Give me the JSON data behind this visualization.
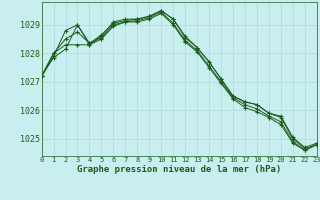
{
  "title": "Graphe pression niveau de la mer (hPa)",
  "background_color": "#c8eef0",
  "grid_color": "#b0d8dc",
  "line_color": "#1a5e1a",
  "xlim": [
    0,
    23
  ],
  "ylim": [
    1024.4,
    1029.8
  ],
  "yticks": [
    1025,
    1026,
    1027,
    1028,
    1029
  ],
  "xtick_labels": [
    "0",
    "1",
    "2",
    "3",
    "4",
    "5",
    "6",
    "7",
    "8",
    "9",
    "10",
    "11",
    "12",
    "13",
    "14",
    "15",
    "16",
    "17",
    "18",
    "19",
    "20",
    "21",
    "22",
    "23"
  ],
  "series": [
    [
      1027.2,
      1027.9,
      1028.8,
      1029.0,
      1028.35,
      1028.65,
      1029.05,
      1029.15,
      1029.2,
      1029.3,
      1029.5,
      1029.2,
      1028.55,
      1028.2,
      1027.7,
      1027.1,
      1026.5,
      1026.3,
      1026.2,
      1025.9,
      1025.75,
      1025.0,
      1024.65,
      1024.8
    ],
    [
      1027.2,
      1028.0,
      1028.5,
      1028.75,
      1028.35,
      1028.55,
      1029.0,
      1029.1,
      1029.15,
      1029.25,
      1029.45,
      1029.05,
      1028.45,
      1028.1,
      1027.55,
      1027.0,
      1026.45,
      1026.2,
      1026.05,
      1025.8,
      1025.6,
      1024.9,
      1024.6,
      1024.8
    ],
    [
      1027.2,
      1028.0,
      1028.3,
      1028.3,
      1028.3,
      1028.5,
      1028.95,
      1029.1,
      1029.1,
      1029.2,
      1029.4,
      1029.0,
      1028.4,
      1028.05,
      1027.5,
      1026.95,
      1026.4,
      1026.1,
      1025.95,
      1025.75,
      1025.5,
      1024.85,
      1024.6,
      1024.8
    ],
    [
      1027.2,
      1027.85,
      1028.15,
      1029.0,
      1028.3,
      1028.6,
      1029.1,
      1029.2,
      1029.2,
      1029.3,
      1029.5,
      1029.2,
      1028.6,
      1028.2,
      1027.7,
      1027.1,
      1026.5,
      1026.3,
      1026.2,
      1025.9,
      1025.8,
      1025.05,
      1024.7,
      1024.85
    ]
  ]
}
